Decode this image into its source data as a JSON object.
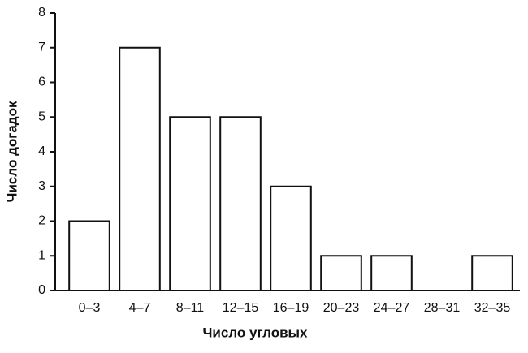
{
  "chart_data": {
    "type": "bar",
    "categories": [
      "0–3",
      "4–7",
      "8–11",
      "12–15",
      "16–19",
      "20–23",
      "24–27",
      "28–31",
      "32–35"
    ],
    "values": [
      2,
      7,
      5,
      5,
      3,
      1,
      1,
      0,
      1
    ],
    "color": "#ffffff",
    "x_label": "Число угловых",
    "y_label": "Число догадок",
    "ylim": [
      0,
      8
    ],
    "yticks": [
      0,
      1,
      2,
      3,
      4,
      5,
      6,
      7,
      8
    ],
    "grid": false
  }
}
